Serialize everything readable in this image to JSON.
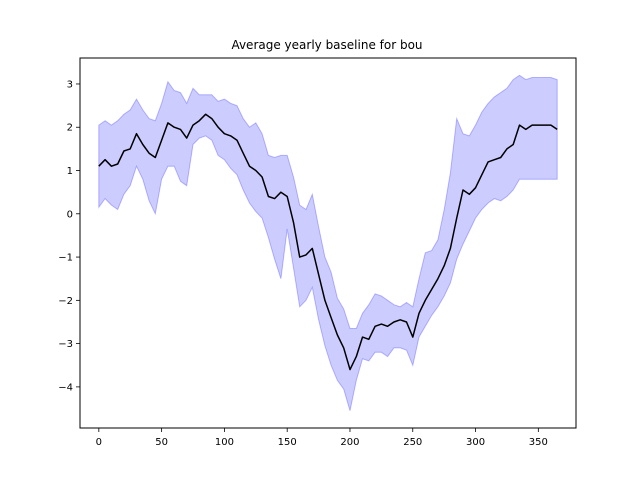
{
  "chart_data": {
    "type": "line",
    "title": "Average yearly baseline for bou",
    "xlabel": "",
    "ylabel": "",
    "xlim": [
      -15,
      380
    ],
    "ylim": [
      -4.95,
      3.6
    ],
    "xticks": [
      0,
      50,
      100,
      150,
      200,
      250,
      300,
      350
    ],
    "yticks": [
      -4,
      -3,
      -2,
      -1,
      0,
      1,
      2,
      3
    ],
    "grid": false,
    "colors": {
      "line": "#000000",
      "band": "#0000ff",
      "band_opacity": 0.2
    },
    "series": [
      {
        "x": [
          0,
          5,
          10,
          15,
          20,
          25,
          30,
          35,
          40,
          45,
          50,
          55,
          60,
          65,
          70,
          75,
          80,
          85,
          90,
          95,
          100,
          105,
          110,
          115,
          120,
          125,
          130,
          135,
          140,
          145,
          150,
          155,
          160,
          165,
          170,
          175,
          180,
          185,
          190,
          195,
          200,
          205,
          210,
          215,
          220,
          225,
          230,
          235,
          240,
          245,
          250,
          255,
          260,
          265,
          270,
          275,
          280,
          285,
          290,
          295,
          300,
          305,
          310,
          315,
          320,
          325,
          330,
          335,
          340,
          345,
          350,
          355,
          360,
          365
        ],
        "y": [
          1.1,
          1.25,
          1.1,
          1.15,
          1.45,
          1.5,
          1.85,
          1.6,
          1.4,
          1.3,
          1.7,
          2.1,
          2.0,
          1.95,
          1.75,
          2.05,
          2.15,
          2.3,
          2.2,
          2.0,
          1.85,
          1.8,
          1.7,
          1.4,
          1.1,
          1.0,
          0.85,
          0.4,
          0.35,
          0.5,
          0.4,
          -0.2,
          -1.0,
          -0.95,
          -0.8,
          -1.4,
          -2.0,
          -2.4,
          -2.8,
          -3.1,
          -3.6,
          -3.3,
          -2.85,
          -2.9,
          -2.6,
          -2.55,
          -2.6,
          -2.5,
          -2.45,
          -2.5,
          -2.85,
          -2.3,
          -2.0,
          -1.75,
          -1.5,
          -1.2,
          -0.8,
          -0.1,
          0.55,
          0.45,
          0.6,
          0.9,
          1.2,
          1.25,
          1.3,
          1.5,
          1.6,
          2.05,
          1.95,
          2.05,
          2.05,
          2.05,
          2.05,
          1.95
        ]
      }
    ],
    "band": {
      "upper": [
        2.05,
        2.15,
        2.05,
        2.15,
        2.3,
        2.4,
        2.65,
        2.4,
        2.2,
        2.15,
        2.55,
        3.05,
        2.85,
        2.8,
        2.55,
        2.9,
        2.75,
        2.75,
        2.75,
        2.6,
        2.65,
        2.55,
        2.5,
        2.2,
        2.0,
        2.1,
        1.85,
        1.35,
        1.3,
        1.35,
        1.35,
        0.85,
        0.2,
        0.1,
        0.45,
        -0.3,
        -1.0,
        -1.35,
        -1.95,
        -2.2,
        -2.65,
        -2.65,
        -2.3,
        -2.1,
        -1.85,
        -1.9,
        -2.0,
        -2.1,
        -2.15,
        -2.05,
        -2.15,
        -1.5,
        -0.9,
        -0.85,
        -0.6,
        0.1,
        0.95,
        2.2,
        1.85,
        1.8,
        2.05,
        2.35,
        2.55,
        2.7,
        2.8,
        2.9,
        3.1,
        3.2,
        3.1,
        3.15,
        3.15,
        3.15,
        3.15,
        3.1
      ],
      "lower": [
        0.15,
        0.35,
        0.2,
        0.1,
        0.45,
        0.65,
        1.1,
        0.8,
        0.3,
        0.0,
        0.8,
        1.1,
        1.1,
        0.75,
        0.65,
        1.6,
        1.75,
        1.8,
        1.7,
        1.35,
        1.25,
        1.05,
        0.9,
        0.55,
        0.25,
        0.05,
        -0.1,
        -0.55,
        -1.05,
        -1.5,
        -0.35,
        -1.25,
        -2.15,
        -2.0,
        -1.7,
        -2.45,
        -3.05,
        -3.5,
        -3.85,
        -4.05,
        -4.55,
        -3.85,
        -3.35,
        -3.4,
        -3.2,
        -3.2,
        -3.3,
        -3.1,
        -3.1,
        -3.15,
        -3.5,
        -2.85,
        -2.6,
        -2.35,
        -2.15,
        -1.9,
        -1.6,
        -1.05,
        -0.7,
        -0.4,
        -0.1,
        0.1,
        0.25,
        0.35,
        0.3,
        0.4,
        0.55,
        0.8,
        0.8,
        0.8,
        0.8,
        0.8,
        0.8,
        0.8
      ]
    }
  }
}
